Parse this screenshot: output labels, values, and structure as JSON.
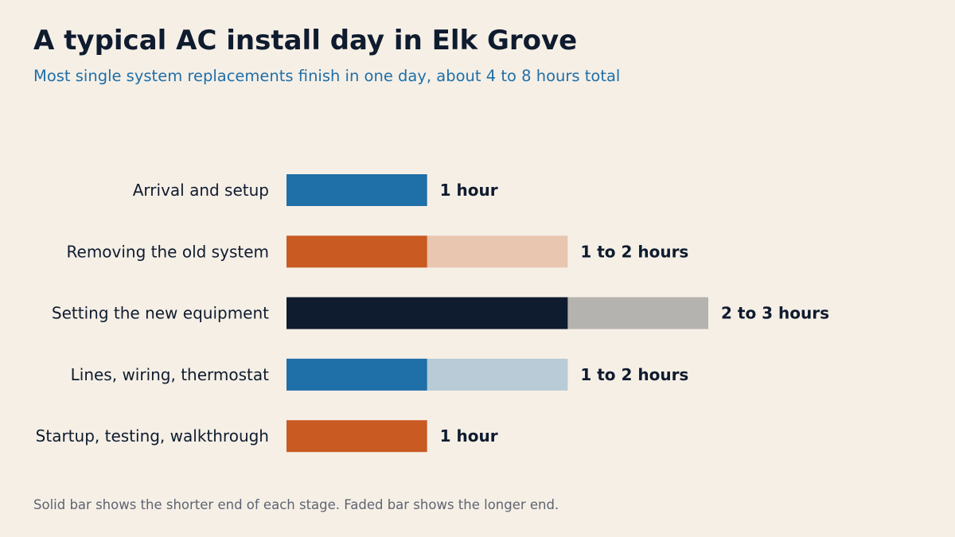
{
  "title": "A typical AC install day in Elk Grove",
  "subtitle": "Most single system replacements finish in one day, about 4 to 8 hours total",
  "footnote": "Solid bar shows the shorter end of each stage. Faded bar shows the longer end.",
  "chart_data": {
    "type": "bar",
    "orientation": "horizontal",
    "categories": [
      "Arrival and setup",
      "Removing the old system",
      "Setting the new equipment",
      "Lines, wiring, thermostat",
      "Startup, testing, walkthrough"
    ],
    "series": [
      {
        "values": [
          1,
          1,
          2,
          1,
          1
        ]
      },
      {
        "values": [
          1,
          2,
          3,
          2,
          1
        ]
      }
    ],
    "value_labels": [
      "1 hour",
      "1 to 2 hours",
      "2 to 3 hours",
      "1 to 2 hours",
      "1 hour"
    ],
    "colors": {
      "solid": [
        "#1f6fa8",
        "#c95a22",
        "#0f1b2e",
        "#1f6fa8",
        "#c95a22"
      ],
      "faded": [
        "#a9c8dd",
        "#e8c6b0",
        "#b5b3b0",
        "#b8cbd6",
        "#e8c6b0"
      ]
    },
    "xlim": [
      0,
      3
    ],
    "grid": false,
    "legend": "none"
  }
}
